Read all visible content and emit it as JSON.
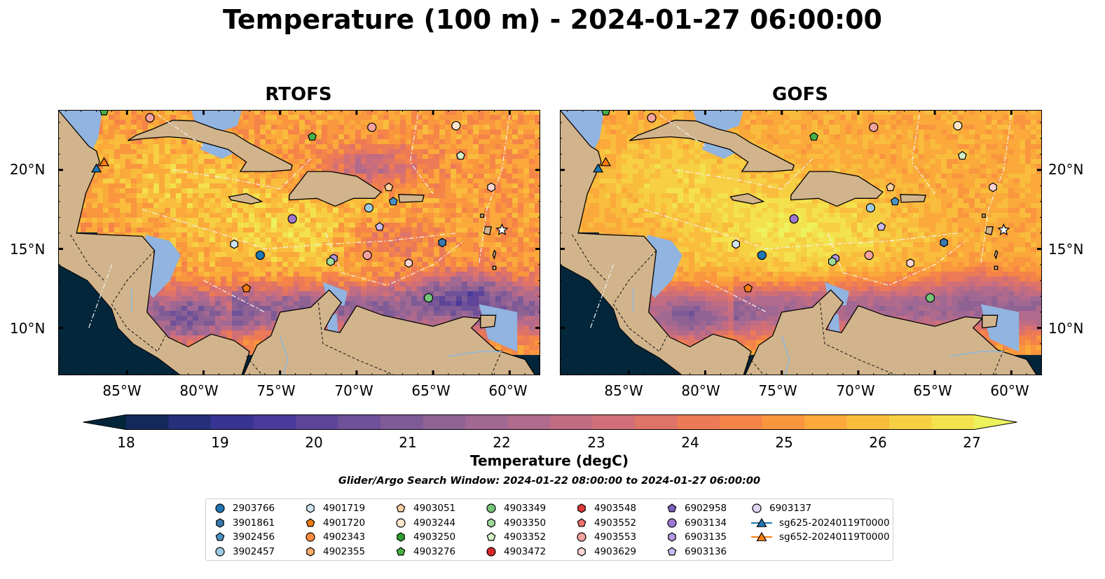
{
  "title": "Temperature (100 m) - 2024-01-27 06:00:00",
  "panels": [
    {
      "id": "rtofs",
      "title": "RTOFS"
    },
    {
      "id": "gofs",
      "title": "GOFS"
    }
  ],
  "lat_labels": [
    "20°N",
    "15°N",
    "10°N"
  ],
  "lon_labels": [
    "85°W",
    "80°W",
    "75°W",
    "70°W",
    "65°W",
    "60°W"
  ],
  "extent": {
    "lon": [
      -89.5,
      -58.0
    ],
    "lat": [
      7.0,
      23.8
    ]
  },
  "colorbar": {
    "label": "Temperature (degC)",
    "ticks": [
      "18",
      "19",
      "20",
      "21",
      "22",
      "23",
      "24",
      "25",
      "26",
      "27"
    ],
    "range": [
      18,
      27
    ],
    "colors": [
      "#03253a",
      "#13295a",
      "#25307a",
      "#383493",
      "#4a3a9c",
      "#5e4599",
      "#6e5198",
      "#7e5b96",
      "#8f6294",
      "#a06893",
      "#b06a8c",
      "#c16c83",
      "#d06f78",
      "#de7368",
      "#ec7a57",
      "#f58448",
      "#f9963e",
      "#faa93a",
      "#f9bc3d",
      "#f7cf43",
      "#f3e24d",
      "#edf25c"
    ]
  },
  "search_window": "Glider/Argo Search Window: 2024-01-22 08:00:00 to 2024-01-27 06:00:00",
  "legend": [
    {
      "name": "2903766",
      "marker": "circle",
      "color": "#1f77b4"
    },
    {
      "name": "3901861",
      "marker": "hexagon",
      "color": "#3a78b0"
    },
    {
      "name": "3902456",
      "marker": "pentagon",
      "color": "#4a92c6"
    },
    {
      "name": "3902457",
      "marker": "circle",
      "color": "#9ecae1"
    },
    {
      "name": "4901719",
      "marker": "hexagon",
      "color": "#cfe3f1"
    },
    {
      "name": "4901720",
      "marker": "pentagon",
      "color": "#f07b12"
    },
    {
      "name": "4902343",
      "marker": "circle",
      "color": "#fd8d3c"
    },
    {
      "name": "4902355",
      "marker": "hexagon",
      "color": "#fdae6b"
    },
    {
      "name": "4903051",
      "marker": "pentagon",
      "color": "#fdd0a2"
    },
    {
      "name": "4903244",
      "marker": "circle",
      "color": "#fde6ce"
    },
    {
      "name": "4903250",
      "marker": "hexagon",
      "color": "#2ca02c"
    },
    {
      "name": "4903276",
      "marker": "pentagon",
      "color": "#47b047"
    },
    {
      "name": "4903349",
      "marker": "circle",
      "color": "#74c476"
    },
    {
      "name": "4903350",
      "marker": "hexagon",
      "color": "#a1d99b"
    },
    {
      "name": "4903352",
      "marker": "pentagon",
      "color": "#d4f2c8"
    },
    {
      "name": "4903472",
      "marker": "circle",
      "color": "#d62728"
    },
    {
      "name": "4903548",
      "marker": "hexagon",
      "color": "#e0393a"
    },
    {
      "name": "4903552",
      "marker": "pentagon",
      "color": "#f0706a"
    },
    {
      "name": "4903553",
      "marker": "circle",
      "color": "#f4a3a0"
    },
    {
      "name": "4903629",
      "marker": "hexagon",
      "color": "#fcd5d3"
    },
    {
      "name": "6902958",
      "marker": "pentagon",
      "color": "#8060c0"
    },
    {
      "name": "6903134",
      "marker": "circle",
      "color": "#9e78d0"
    },
    {
      "name": "6903135",
      "marker": "hexagon",
      "color": "#b49ae0"
    },
    {
      "name": "6903136",
      "marker": "pentagon",
      "color": "#cdb8ee"
    },
    {
      "name": "6903137",
      "marker": "circle",
      "color": "#e2d4f6"
    },
    {
      "name": "sg625-20240119T0000",
      "marker": "triangle-line",
      "color": "#1f77b4"
    },
    {
      "name": "sg652-20240119T0000",
      "marker": "triangle-line",
      "color": "#ff7f0e"
    }
  ],
  "map_colors": {
    "land": "#d2b48c",
    "shelf": "#91b4e0",
    "coast": "#000000"
  },
  "platforms": [
    {
      "lon": -86.5,
      "lat": 23.7,
      "marker": "pentagon",
      "color": "#47b047"
    },
    {
      "lon": -83.5,
      "lat": 23.3,
      "marker": "circle",
      "color": "#f4a3a0"
    },
    {
      "lon": -72.9,
      "lat": 22.1,
      "marker": "pentagon",
      "color": "#47b047"
    },
    {
      "lon": -69.0,
      "lat": 22.7,
      "marker": "circle",
      "color": "#f4a3a0"
    },
    {
      "lon": -63.5,
      "lat": 22.8,
      "marker": "circle",
      "color": "#fde6ce"
    },
    {
      "lon": -63.2,
      "lat": 20.9,
      "marker": "pentagon",
      "color": "#d4f2c8"
    },
    {
      "lon": -67.9,
      "lat": 18.9,
      "marker": "pentagon",
      "color": "#fdd0a2"
    },
    {
      "lon": -67.6,
      "lat": 18.0,
      "marker": "pentagon",
      "color": "#4a92c6"
    },
    {
      "lon": -69.2,
      "lat": 17.6,
      "marker": "circle",
      "color": "#9ecae1"
    },
    {
      "lon": -61.2,
      "lat": 18.9,
      "marker": "hexagon",
      "color": "#fcd5d3"
    },
    {
      "lon": -74.2,
      "lat": 16.9,
      "marker": "circle",
      "color": "#9e78d0"
    },
    {
      "lon": -68.5,
      "lat": 16.4,
      "marker": "pentagon",
      "color": "#cdb8ee"
    },
    {
      "lon": -60.5,
      "lat": 16.2,
      "marker": "star",
      "color": "#ffffff"
    },
    {
      "lon": -78.0,
      "lat": 15.3,
      "marker": "hexagon",
      "color": "#cfe3f1"
    },
    {
      "lon": -64.4,
      "lat": 15.4,
      "marker": "hexagon",
      "color": "#3a78b0"
    },
    {
      "lon": -76.3,
      "lat": 14.6,
      "marker": "circle",
      "color": "#1f77b4"
    },
    {
      "lon": -71.5,
      "lat": 14.4,
      "marker": "hexagon",
      "color": "#b49ae0"
    },
    {
      "lon": -71.7,
      "lat": 14.2,
      "marker": "hexagon",
      "color": "#a1d99b"
    },
    {
      "lon": -69.3,
      "lat": 14.6,
      "marker": "circle",
      "color": "#f4a3a0"
    },
    {
      "lon": -66.6,
      "lat": 14.1,
      "marker": "hexagon",
      "color": "#fcd5d3"
    },
    {
      "lon": -77.2,
      "lat": 12.5,
      "marker": "pentagon",
      "color": "#f07b12"
    },
    {
      "lon": -65.3,
      "lat": 11.9,
      "marker": "circle",
      "color": "#74c476"
    },
    {
      "lon": -87.0,
      "lat": 20.1,
      "marker": "triangle",
      "color": "#1f77b4"
    },
    {
      "lon": -86.5,
      "lat": 20.5,
      "marker": "triangle",
      "color": "#ff7f0e"
    }
  ]
}
